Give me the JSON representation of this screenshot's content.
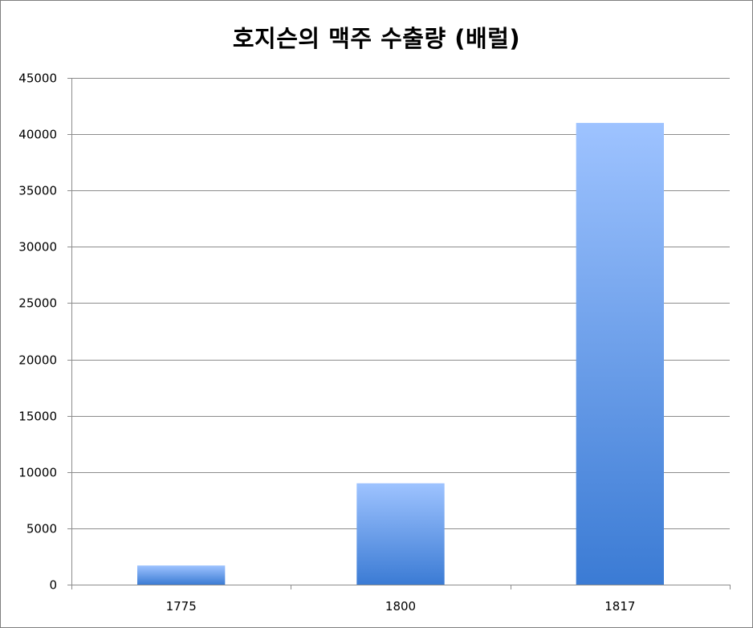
{
  "chart_data": {
    "type": "bar",
    "title": "호지슨의 맥주 수출량 (배럴)",
    "categories": [
      "1775",
      "1800",
      "1817"
    ],
    "values": [
      1700,
      9000,
      41000
    ],
    "ylim": [
      0,
      45000
    ],
    "yticks": [
      "0",
      "5000",
      "10000",
      "15000",
      "20000",
      "25000",
      "30000",
      "35000",
      "40000",
      "45000"
    ],
    "ytick_values": [
      0,
      5000,
      10000,
      15000,
      20000,
      25000,
      30000,
      35000,
      40000,
      45000
    ],
    "xlabel": "",
    "ylabel": "",
    "grid": true,
    "legend": "none",
    "bar_color_top": "#9ec3ff",
    "bar_color_bottom": "#3b7bd4"
  }
}
